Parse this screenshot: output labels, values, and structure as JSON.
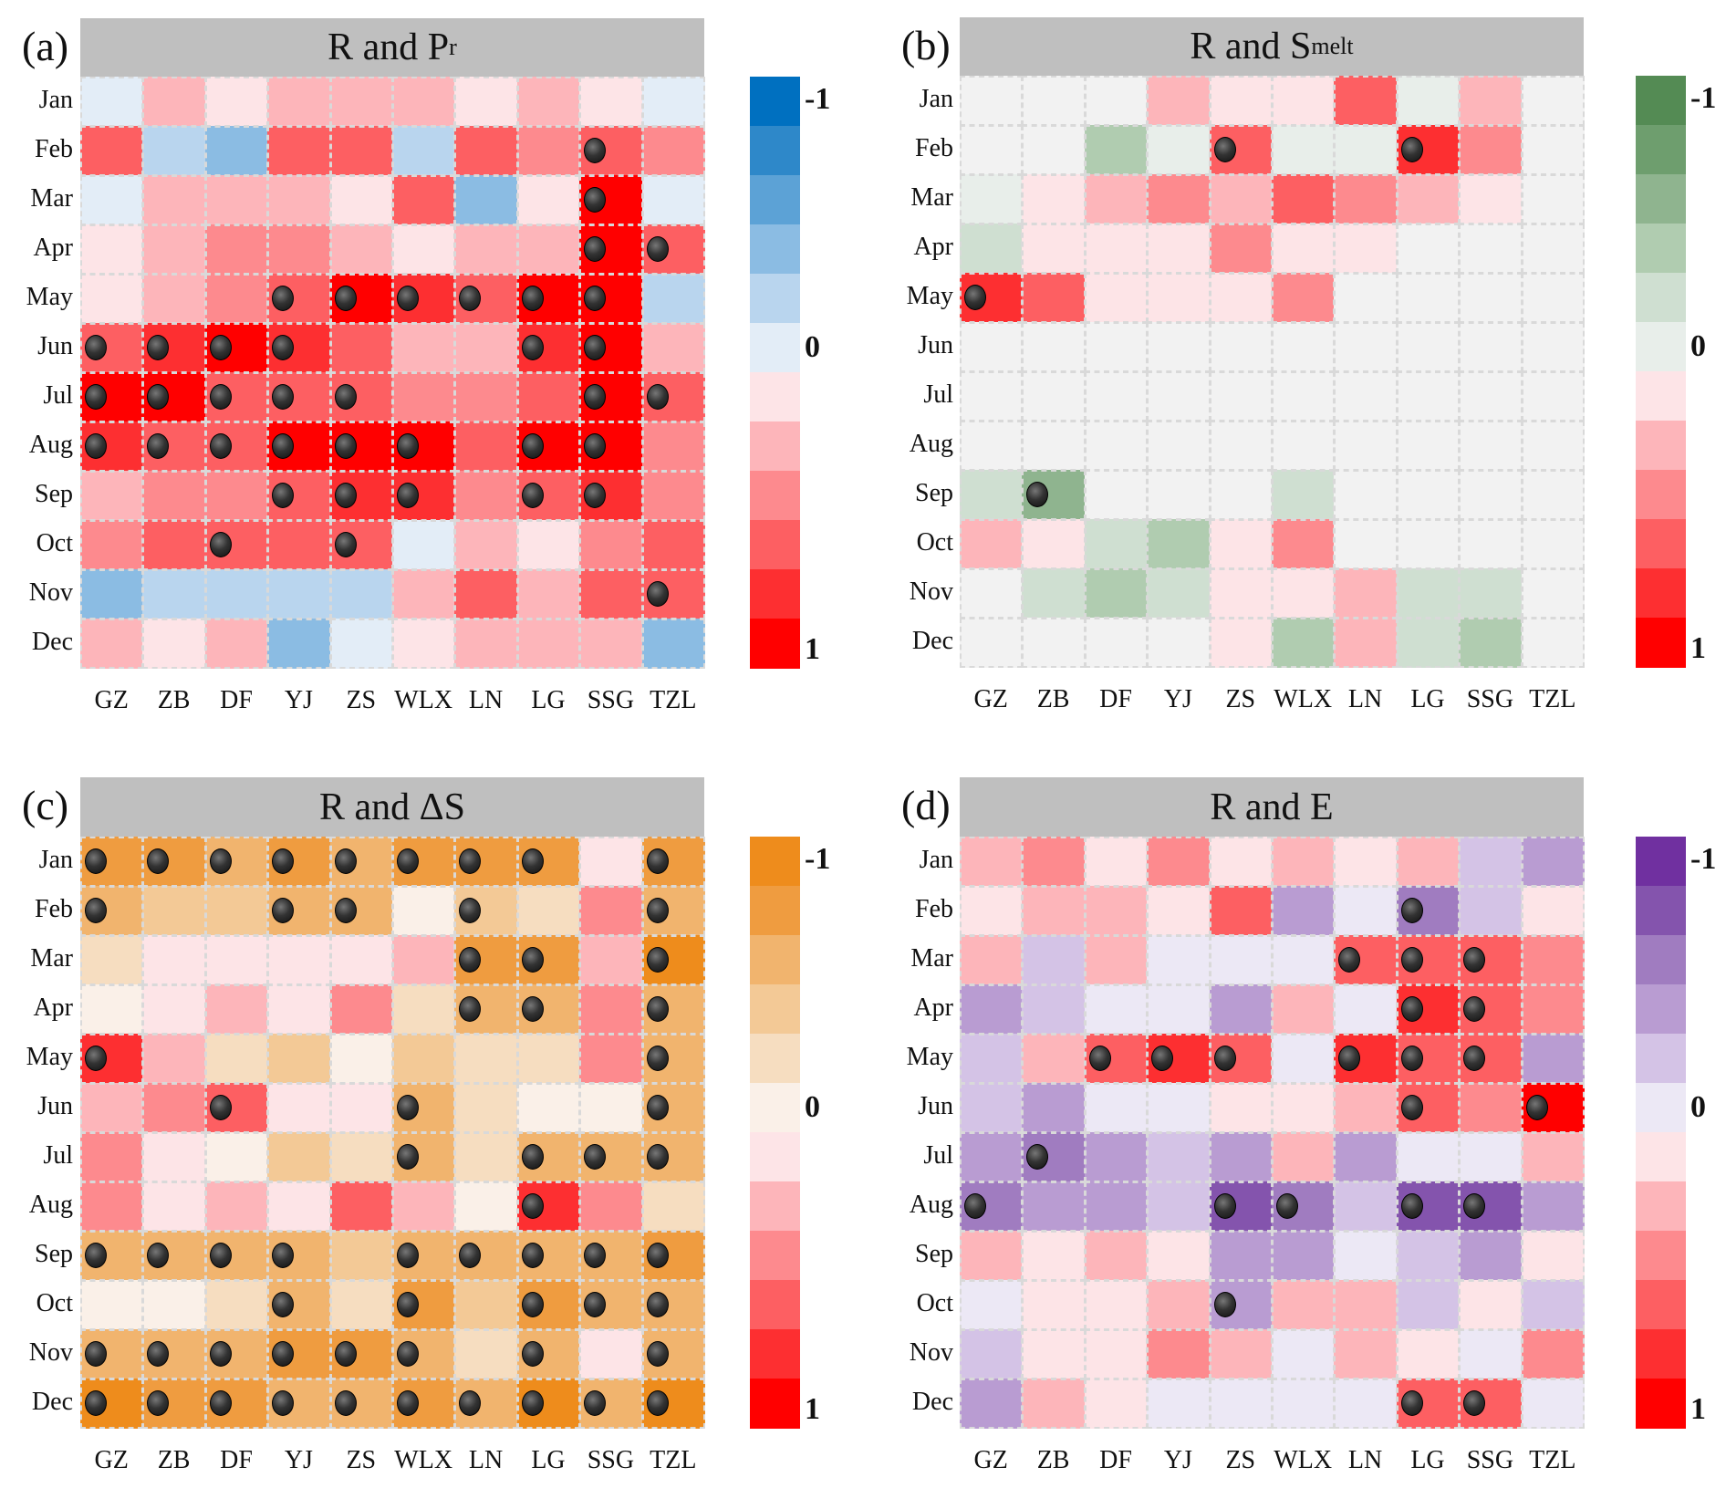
{
  "chart_data": [
    {
      "type": "heatmap",
      "panel_label": "(a)",
      "title": "R and P",
      "title_sub": "r",
      "rows": [
        "Jan",
        "Feb",
        "Mar",
        "Apr",
        "May",
        "Jun",
        "Jul",
        "Aug",
        "Sep",
        "Oct",
        "Nov",
        "Dec"
      ],
      "cols": [
        "GZ",
        "ZB",
        "DF",
        "YJ",
        "ZS",
        "WLX",
        "LN",
        "LG",
        "SSG",
        "TZL"
      ],
      "colorbar": {
        "ticks": [
          "-1",
          "0",
          "1"
        ],
        "range": [
          -1,
          1
        ],
        "colors": [
          "#0070c0",
          "#2e88c9",
          "#5ca2d6",
          "#8bbce3",
          "#b9d5ee",
          "#e3edf7",
          "#fde4e7",
          "#fdb5ba",
          "#fd8a8e",
          "#fd5f62",
          "#fd2f31",
          "#ff0000"
        ]
      },
      "values": [
        [
          -0.15,
          0.2,
          0.15,
          0.25,
          0.2,
          0.2,
          0.1,
          0.3,
          0.15,
          -0.1
        ],
        [
          0.5,
          -0.3,
          -0.45,
          0.5,
          0.5,
          -0.3,
          0.5,
          0.4,
          0.65,
          0.4
        ],
        [
          -0.03,
          0.3,
          0.2,
          0.25,
          0.05,
          0.5,
          -0.4,
          0.15,
          0.85,
          -0.05
        ],
        [
          0.15,
          0.25,
          0.4,
          0.4,
          0.2,
          0.15,
          0.25,
          0.3,
          0.85,
          0.6
        ],
        [
          0.15,
          0.3,
          0.4,
          0.6,
          0.85,
          0.7,
          0.6,
          0.85,
          0.9,
          -0.3
        ],
        [
          0.6,
          0.7,
          0.9,
          0.7,
          0.5,
          0.3,
          0.3,
          0.7,
          0.9,
          0.2
        ],
        [
          0.85,
          0.85,
          0.6,
          0.6,
          0.6,
          0.35,
          0.45,
          0.5,
          0.9,
          0.6
        ],
        [
          0.7,
          0.6,
          0.6,
          0.95,
          0.85,
          0.85,
          0.5,
          0.95,
          0.85,
          0.35
        ],
        [
          0.3,
          0.35,
          0.35,
          0.55,
          0.7,
          0.8,
          0.4,
          0.6,
          0.75,
          0.4
        ],
        [
          0.4,
          0.5,
          0.5,
          0.5,
          0.6,
          -0.1,
          0.2,
          0.03,
          0.4,
          0.5
        ],
        [
          -0.45,
          -0.25,
          -0.25,
          -0.3,
          -0.2,
          0.2,
          0.5,
          0.3,
          0.55,
          0.55
        ],
        [
          0.3,
          0.15,
          0.25,
          -0.45,
          -0.02,
          0.15,
          0.2,
          0.2,
          0.25,
          -0.35
        ]
      ],
      "significant": [
        [
          0,
          0,
          0,
          0,
          0,
          0,
          0,
          0,
          0,
          0
        ],
        [
          0,
          0,
          0,
          0,
          0,
          0,
          0,
          0,
          1,
          0
        ],
        [
          0,
          0,
          0,
          0,
          0,
          0,
          0,
          0,
          1,
          0
        ],
        [
          0,
          0,
          0,
          0,
          0,
          0,
          0,
          0,
          1,
          1
        ],
        [
          0,
          0,
          0,
          1,
          1,
          1,
          1,
          1,
          1,
          0
        ],
        [
          1,
          1,
          1,
          1,
          0,
          0,
          0,
          1,
          1,
          0
        ],
        [
          1,
          1,
          1,
          1,
          1,
          0,
          0,
          0,
          1,
          1
        ],
        [
          1,
          1,
          1,
          1,
          1,
          1,
          0,
          1,
          1,
          0
        ],
        [
          0,
          0,
          0,
          1,
          1,
          1,
          0,
          1,
          1,
          0
        ],
        [
          0,
          0,
          1,
          0,
          1,
          0,
          0,
          0,
          0,
          0
        ],
        [
          0,
          0,
          0,
          0,
          0,
          0,
          0,
          0,
          0,
          1
        ],
        [
          0,
          0,
          0,
          0,
          0,
          0,
          0,
          0,
          0,
          0
        ]
      ]
    },
    {
      "type": "heatmap",
      "panel_label": "(b)",
      "title": "R and S",
      "title_sub": "melt",
      "rows": [
        "Jan",
        "Feb",
        "Mar",
        "Apr",
        "May",
        "Jun",
        "Jul",
        "Aug",
        "Sep",
        "Oct",
        "Nov",
        "Dec"
      ],
      "cols": [
        "GZ",
        "ZB",
        "DF",
        "YJ",
        "ZS",
        "WLX",
        "LN",
        "LG",
        "SSG",
        "TZL"
      ],
      "colorbar": {
        "ticks": [
          "-1",
          "0",
          "1"
        ],
        "range": [
          -1,
          1
        ],
        "colors": [
          "#548b54",
          "#6e9e6e",
          "#8fb48f",
          "#b0ccb0",
          "#cfdfd1",
          "#e8eeea",
          "#fde4e7",
          "#fdb5ba",
          "#fd8a8e",
          "#fd5f62",
          "#fd2f31",
          "#ff0000"
        ]
      },
      "missing_color": "#f2f2f2",
      "values": [
        [
          null,
          null,
          null,
          0.25,
          0.15,
          0.1,
          0.5,
          -0.1,
          0.25,
          null
        ],
        [
          null,
          null,
          -0.45,
          -0.02,
          0.6,
          -0.02,
          -0.1,
          0.75,
          0.45,
          null
        ],
        [
          -0.03,
          0.02,
          0.3,
          0.35,
          0.3,
          0.5,
          0.45,
          0.25,
          0.1,
          null
        ],
        [
          -0.25,
          0.02,
          0.15,
          0.15,
          0.35,
          0.05,
          0.15,
          null,
          null,
          null
        ],
        [
          0.8,
          0.5,
          0.15,
          0.1,
          0.05,
          0.35,
          null,
          null,
          null,
          null
        ],
        [
          null,
          null,
          null,
          null,
          null,
          null,
          null,
          null,
          null,
          null
        ],
        [
          null,
          null,
          null,
          null,
          null,
          null,
          null,
          null,
          null,
          null
        ],
        [
          null,
          null,
          null,
          null,
          null,
          null,
          null,
          null,
          null,
          null
        ],
        [
          -0.25,
          -0.55,
          null,
          null,
          null,
          -0.25,
          null,
          null,
          null,
          null
        ],
        [
          0.3,
          0.01,
          -0.3,
          -0.45,
          0.01,
          0.4,
          null,
          null,
          null,
          null
        ],
        [
          null,
          -0.25,
          -0.35,
          -0.3,
          0.01,
          0.1,
          0.2,
          -0.25,
          -0.25,
          null
        ],
        [
          null,
          null,
          null,
          null,
          0.01,
          -0.4,
          0.2,
          -0.3,
          -0.35,
          null
        ]
      ],
      "significant": [
        [
          0,
          0,
          0,
          0,
          0,
          0,
          0,
          0,
          0,
          0
        ],
        [
          0,
          0,
          0,
          0,
          1,
          0,
          0,
          1,
          0,
          0
        ],
        [
          0,
          0,
          0,
          0,
          0,
          0,
          0,
          0,
          0,
          0
        ],
        [
          0,
          0,
          0,
          0,
          0,
          0,
          0,
          0,
          0,
          0
        ],
        [
          1,
          0,
          0,
          0,
          0,
          0,
          0,
          0,
          0,
          0
        ],
        [
          0,
          0,
          0,
          0,
          0,
          0,
          0,
          0,
          0,
          0
        ],
        [
          0,
          0,
          0,
          0,
          0,
          0,
          0,
          0,
          0,
          0
        ],
        [
          0,
          0,
          0,
          0,
          0,
          0,
          0,
          0,
          0,
          0
        ],
        [
          0,
          1,
          0,
          0,
          0,
          0,
          0,
          0,
          0,
          0
        ],
        [
          0,
          0,
          0,
          0,
          0,
          0,
          0,
          0,
          0,
          0
        ],
        [
          0,
          0,
          0,
          0,
          0,
          0,
          0,
          0,
          0,
          0
        ],
        [
          0,
          0,
          0,
          0,
          0,
          0,
          0,
          0,
          0,
          0
        ]
      ]
    },
    {
      "type": "heatmap",
      "panel_label": "(c)",
      "title": "R and ΔS",
      "title_sub": "",
      "rows": [
        "Jan",
        "Feb",
        "Mar",
        "Apr",
        "May",
        "Jun",
        "Jul",
        "Aug",
        "Sep",
        "Oct",
        "Nov",
        "Dec"
      ],
      "cols": [
        "GZ",
        "ZB",
        "DF",
        "YJ",
        "ZS",
        "WLX",
        "LN",
        "LG",
        "SSG",
        "TZL"
      ],
      "colorbar": {
        "ticks": [
          "-1",
          "0",
          "1"
        ],
        "range": [
          -1,
          1
        ],
        "colors": [
          "#ee8c1c",
          "#ef9c40",
          "#f1b46e",
          "#f3c996",
          "#f6ddc0",
          "#faf0e8",
          "#fde4e7",
          "#fdb5ba",
          "#fd8a8e",
          "#fd5f62",
          "#fd2f31",
          "#ff0000"
        ]
      },
      "values": [
        [
          -0.75,
          -0.75,
          -0.55,
          -0.75,
          -0.55,
          -0.8,
          -0.75,
          -0.7,
          0.05,
          -0.8
        ],
        [
          -0.65,
          -0.45,
          -0.45,
          -0.65,
          -0.65,
          -0.1,
          -0.45,
          -0.25,
          0.35,
          -0.65
        ],
        [
          -0.25,
          0.01,
          0.01,
          0.1,
          0.01,
          0.2,
          -0.8,
          -0.75,
          0.2,
          -0.85
        ],
        [
          -0.15,
          0.02,
          0.25,
          0.1,
          0.35,
          -0.3,
          -0.55,
          -0.55,
          0.35,
          -0.6
        ],
        [
          0.7,
          0.25,
          -0.3,
          -0.35,
          -0.12,
          -0.4,
          -0.25,
          -0.3,
          0.45,
          -0.6
        ],
        [
          0.25,
          0.45,
          0.6,
          0.1,
          0.01,
          -0.55,
          -0.3,
          -0.1,
          -0.1,
          -0.6
        ],
        [
          0.35,
          0.15,
          -0.12,
          -0.35,
          -0.2,
          -0.55,
          -0.3,
          -0.55,
          -0.65,
          -0.55
        ],
        [
          0.4,
          0.15,
          0.2,
          0.15,
          0.5,
          0.25,
          -0.05,
          0.75,
          0.35,
          -0.3
        ],
        [
          -0.55,
          -0.55,
          -0.55,
          -0.55,
          -0.35,
          -0.65,
          -0.6,
          -0.6,
          -0.65,
          -0.7
        ],
        [
          -0.12,
          -0.12,
          -0.3,
          -0.55,
          -0.3,
          -0.8,
          -0.45,
          -0.8,
          -0.6,
          -0.65
        ],
        [
          -0.55,
          -0.65,
          -0.65,
          -0.75,
          -0.75,
          -0.55,
          -0.25,
          -0.55,
          0.01,
          -0.65
        ],
        [
          -0.9,
          -0.75,
          -0.8,
          -0.65,
          -0.55,
          -0.8,
          -0.55,
          -0.9,
          -0.6,
          -0.9
        ]
      ],
      "significant": [
        [
          1,
          1,
          1,
          1,
          1,
          1,
          1,
          1,
          0,
          1
        ],
        [
          1,
          0,
          0,
          1,
          1,
          0,
          1,
          0,
          0,
          1
        ],
        [
          0,
          0,
          0,
          0,
          0,
          0,
          1,
          1,
          0,
          1
        ],
        [
          0,
          0,
          0,
          0,
          0,
          0,
          1,
          1,
          0,
          1
        ],
        [
          1,
          0,
          0,
          0,
          0,
          0,
          0,
          0,
          0,
          1
        ],
        [
          0,
          0,
          1,
          0,
          0,
          1,
          0,
          0,
          0,
          1
        ],
        [
          0,
          0,
          0,
          0,
          0,
          1,
          0,
          1,
          1,
          1
        ],
        [
          0,
          0,
          0,
          0,
          0,
          0,
          0,
          1,
          0,
          0
        ],
        [
          1,
          1,
          1,
          1,
          0,
          1,
          1,
          1,
          1,
          1
        ],
        [
          0,
          0,
          0,
          1,
          0,
          1,
          0,
          1,
          1,
          1
        ],
        [
          1,
          1,
          1,
          1,
          1,
          1,
          0,
          1,
          0,
          1
        ],
        [
          1,
          1,
          1,
          1,
          1,
          1,
          1,
          1,
          1,
          1
        ]
      ]
    },
    {
      "type": "heatmap",
      "panel_label": "(d)",
      "title": "R and E",
      "title_sub": "",
      "rows": [
        "Jan",
        "Feb",
        "Mar",
        "Apr",
        "May",
        "Jun",
        "Jul",
        "Aug",
        "Sep",
        "Oct",
        "Nov",
        "Dec"
      ],
      "cols": [
        "GZ",
        "ZB",
        "DF",
        "YJ",
        "ZS",
        "WLX",
        "LN",
        "LG",
        "SSG",
        "TZL"
      ],
      "colorbar": {
        "ticks": [
          "-1",
          "0",
          "1"
        ],
        "range": [
          -1,
          1
        ],
        "colors": [
          "#7030a0",
          "#8454ad",
          "#a07cc0",
          "#b99cd2",
          "#d4c3e6",
          "#ece8f5",
          "#fde4e7",
          "#fdb5ba",
          "#fd8a8e",
          "#fd5f62",
          "#fd2f31",
          "#ff0000"
        ]
      },
      "values": [
        [
          0.25,
          0.4,
          0.12,
          0.35,
          0.15,
          0.25,
          0.05,
          0.2,
          -0.3,
          -0.45
        ],
        [
          0.03,
          0.2,
          0.2,
          0.02,
          0.5,
          -0.45,
          -0.12,
          -0.55,
          -0.3,
          0.15
        ],
        [
          0.2,
          -0.25,
          0.3,
          -0.15,
          -0.15,
          -0.05,
          0.6,
          0.55,
          0.65,
          0.4
        ],
        [
          -0.4,
          -0.3,
          -0.12,
          -0.05,
          -0.45,
          0.3,
          -0.05,
          0.7,
          0.6,
          0.45
        ],
        [
          -0.2,
          0.3,
          0.55,
          0.75,
          0.55,
          -0.02,
          0.75,
          0.6,
          0.6,
          -0.45
        ],
        [
          -0.2,
          -0.35,
          -0.02,
          -0.02,
          0.12,
          0.05,
          0.25,
          0.65,
          0.45,
          0.9
        ],
        [
          -0.35,
          -0.6,
          -0.4,
          -0.2,
          -0.45,
          0.25,
          -0.35,
          -0.05,
          -0.05,
          0.25
        ],
        [
          -0.55,
          -0.4,
          -0.4,
          -0.2,
          -0.8,
          -0.6,
          -0.2,
          -0.8,
          -0.7,
          -0.4
        ],
        [
          0.25,
          0.1,
          0.25,
          0.08,
          -0.45,
          -0.4,
          -0.02,
          -0.2,
          -0.4,
          0.05
        ],
        [
          -0.15,
          0.05,
          0.05,
          0.25,
          -0.45,
          0.25,
          0.2,
          -0.25,
          0.12,
          -0.2
        ],
        [
          -0.3,
          0.15,
          0.05,
          0.45,
          0.25,
          -0.15,
          0.3,
          0.03,
          -0.08,
          0.4
        ],
        [
          -0.35,
          0.2,
          0.05,
          -0.08,
          -0.02,
          -0.1,
          -0.1,
          0.65,
          0.65,
          -0.02
        ]
      ],
      "significant": [
        [
          0,
          0,
          0,
          0,
          0,
          0,
          0,
          0,
          0,
          0
        ],
        [
          0,
          0,
          0,
          0,
          0,
          0,
          0,
          1,
          0,
          0
        ],
        [
          0,
          0,
          0,
          0,
          0,
          0,
          1,
          1,
          1,
          0
        ],
        [
          0,
          0,
          0,
          0,
          0,
          0,
          0,
          1,
          1,
          0
        ],
        [
          0,
          0,
          1,
          1,
          1,
          0,
          1,
          1,
          1,
          0
        ],
        [
          0,
          0,
          0,
          0,
          0,
          0,
          0,
          1,
          0,
          1
        ],
        [
          0,
          1,
          0,
          0,
          0,
          0,
          0,
          0,
          0,
          0
        ],
        [
          1,
          0,
          0,
          0,
          1,
          1,
          0,
          1,
          1,
          0
        ],
        [
          0,
          0,
          0,
          0,
          0,
          0,
          0,
          0,
          0,
          0
        ],
        [
          0,
          0,
          0,
          0,
          1,
          0,
          0,
          0,
          0,
          0
        ],
        [
          0,
          0,
          0,
          0,
          0,
          0,
          0,
          0,
          0,
          0
        ],
        [
          0,
          0,
          0,
          0,
          0,
          0,
          0,
          1,
          1,
          0
        ]
      ]
    }
  ]
}
